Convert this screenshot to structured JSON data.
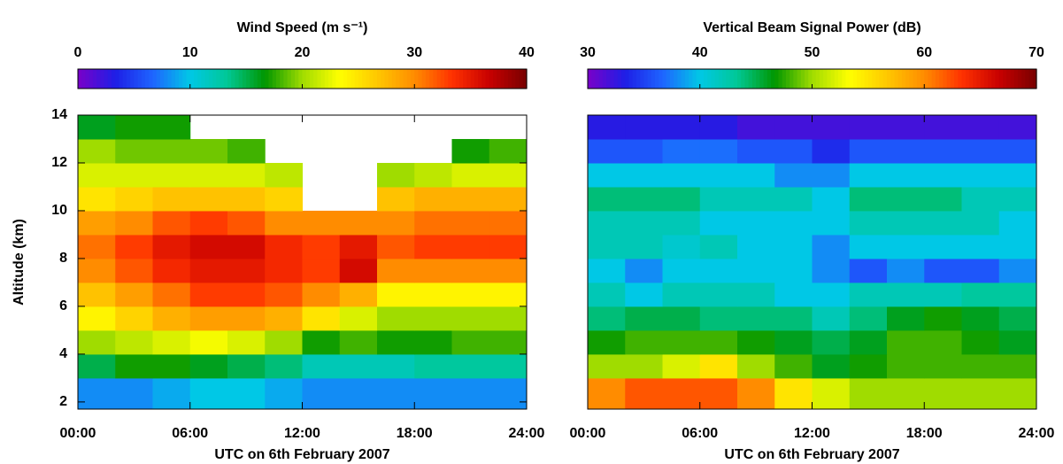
{
  "chart_data": [
    {
      "type": "heatmap",
      "title": "Wind Speed (m s⁻¹)",
      "xlabel": "UTC on 6th February 2007",
      "ylabel": "Altitude (km)",
      "xlim": [
        0,
        24
      ],
      "xticks": [
        {
          "value": 0,
          "label": "00:00"
        },
        {
          "value": 6,
          "label": "06:00"
        },
        {
          "value": 12,
          "label": "12:00"
        },
        {
          "value": 18,
          "label": "18:00"
        },
        {
          "value": 24,
          "label": "24:00"
        }
      ],
      "ylim": [
        1.7,
        14
      ],
      "yticks": [
        2,
        4,
        6,
        8,
        10,
        12,
        14
      ],
      "x_edges": [
        0,
        2,
        4,
        6,
        8,
        10,
        12,
        14,
        16,
        18,
        20,
        22,
        24
      ],
      "y_edges": [
        1.7,
        3,
        4,
        5,
        6,
        7,
        8,
        9,
        10,
        11,
        12,
        13,
        14
      ],
      "z": [
        [
          8,
          8,
          9,
          10,
          10,
          9,
          8,
          8,
          8,
          8,
          8,
          8
        ],
        [
          15,
          17,
          17,
          16,
          15,
          14,
          12,
          12,
          12,
          13,
          13,
          13
        ],
        [
          20,
          21,
          22,
          23,
          22,
          20,
          17,
          18,
          17,
          17,
          18,
          18
        ],
        [
          24,
          26,
          28,
          29,
          29,
          28,
          25,
          22,
          20,
          20,
          20,
          20
        ],
        [
          27,
          29,
          31,
          33,
          33,
          32,
          30,
          28,
          24,
          24,
          24,
          24
        ],
        [
          30,
          32,
          34,
          35,
          35,
          34,
          33,
          36,
          30,
          30,
          30,
          30
        ],
        [
          31,
          33,
          35,
          36,
          36,
          34,
          33,
          35,
          32,
          33,
          33,
          33
        ],
        [
          29,
          30,
          32,
          33,
          32,
          30,
          30,
          30,
          30,
          31,
          31,
          31
        ],
        [
          25,
          26,
          27,
          27,
          27,
          26,
          null,
          null,
          27,
          28,
          28,
          28
        ],
        [
          22,
          22,
          22,
          22,
          22,
          21,
          null,
          null,
          20,
          21,
          22,
          22
        ],
        [
          20,
          19,
          19,
          19,
          18,
          null,
          null,
          null,
          null,
          null,
          17,
          18
        ],
        [
          16,
          17,
          17,
          null,
          null,
          null,
          null,
          null,
          null,
          null,
          null,
          null
        ]
      ],
      "clim": [
        0,
        40
      ],
      "cticks": [
        0,
        10,
        20,
        30,
        40
      ],
      "colormap": [
        "#7a00c8",
        "#1e1ee6",
        "#1e64ff",
        "#00c8e6",
        "#00c896",
        "#009600",
        "#a0dc00",
        "#ffff00",
        "#ffc800",
        "#ff8c00",
        "#ff3200",
        "#c80000",
        "#780000"
      ]
    },
    {
      "type": "heatmap",
      "title": "Vertical Beam Signal Power (dB)",
      "xlabel": "UTC on 6th February 2007",
      "xlim": [
        0,
        24
      ],
      "xticks": [
        {
          "value": 0,
          "label": "00:00"
        },
        {
          "value": 6,
          "label": "06:00"
        },
        {
          "value": 12,
          "label": "12:00"
        },
        {
          "value": 18,
          "label": "18:00"
        },
        {
          "value": 24,
          "label": "24:00"
        }
      ],
      "ylim": [
        1.7,
        14
      ],
      "x_edges": [
        0,
        2,
        4,
        6,
        8,
        10,
        12,
        14,
        16,
        18,
        20,
        22,
        24
      ],
      "y_edges": [
        1.7,
        3,
        4,
        5,
        6,
        7,
        8,
        9,
        10,
        11,
        12,
        13,
        14
      ],
      "z": [
        [
          60,
          62,
          62,
          62,
          60,
          55,
          52,
          50,
          50,
          50,
          50,
          50
        ],
        [
          50,
          50,
          52,
          55,
          50,
          48,
          46,
          47,
          48,
          48,
          48,
          48
        ],
        [
          47,
          48,
          48,
          48,
          47,
          46,
          45,
          46,
          48,
          48,
          47,
          46
        ],
        [
          44,
          45,
          45,
          44,
          44,
          44,
          42,
          44,
          46,
          47,
          46,
          45
        ],
        [
          42,
          40,
          42,
          42,
          42,
          40,
          40,
          42,
          42,
          42,
          43,
          43
        ],
        [
          40,
          38,
          40,
          40,
          40,
          40,
          38,
          36,
          38,
          36,
          36,
          38
        ],
        [
          42,
          42,
          41,
          42,
          40,
          40,
          38,
          40,
          40,
          40,
          40,
          40
        ],
        [
          42,
          42,
          42,
          40,
          40,
          40,
          40,
          42,
          42,
          42,
          42,
          40
        ],
        [
          44,
          44,
          44,
          42,
          42,
          42,
          40,
          44,
          44,
          44,
          42,
          42
        ],
        [
          40,
          40,
          40,
          40,
          40,
          38,
          38,
          40,
          40,
          40,
          40,
          40
        ],
        [
          36,
          36,
          37,
          37,
          36,
          36,
          34,
          36,
          36,
          36,
          36,
          36
        ],
        [
          33,
          33,
          33,
          33,
          32,
          32,
          32,
          32,
          32,
          32,
          32,
          32
        ]
      ],
      "clim": [
        30,
        70
      ],
      "cticks": [
        30,
        40,
        50,
        60,
        70
      ],
      "colormap": [
        "#7a00c8",
        "#1e1ee6",
        "#1e64ff",
        "#00c8e6",
        "#00c896",
        "#009600",
        "#a0dc00",
        "#ffff00",
        "#ffc800",
        "#ff8c00",
        "#ff3200",
        "#c80000",
        "#780000"
      ]
    }
  ]
}
